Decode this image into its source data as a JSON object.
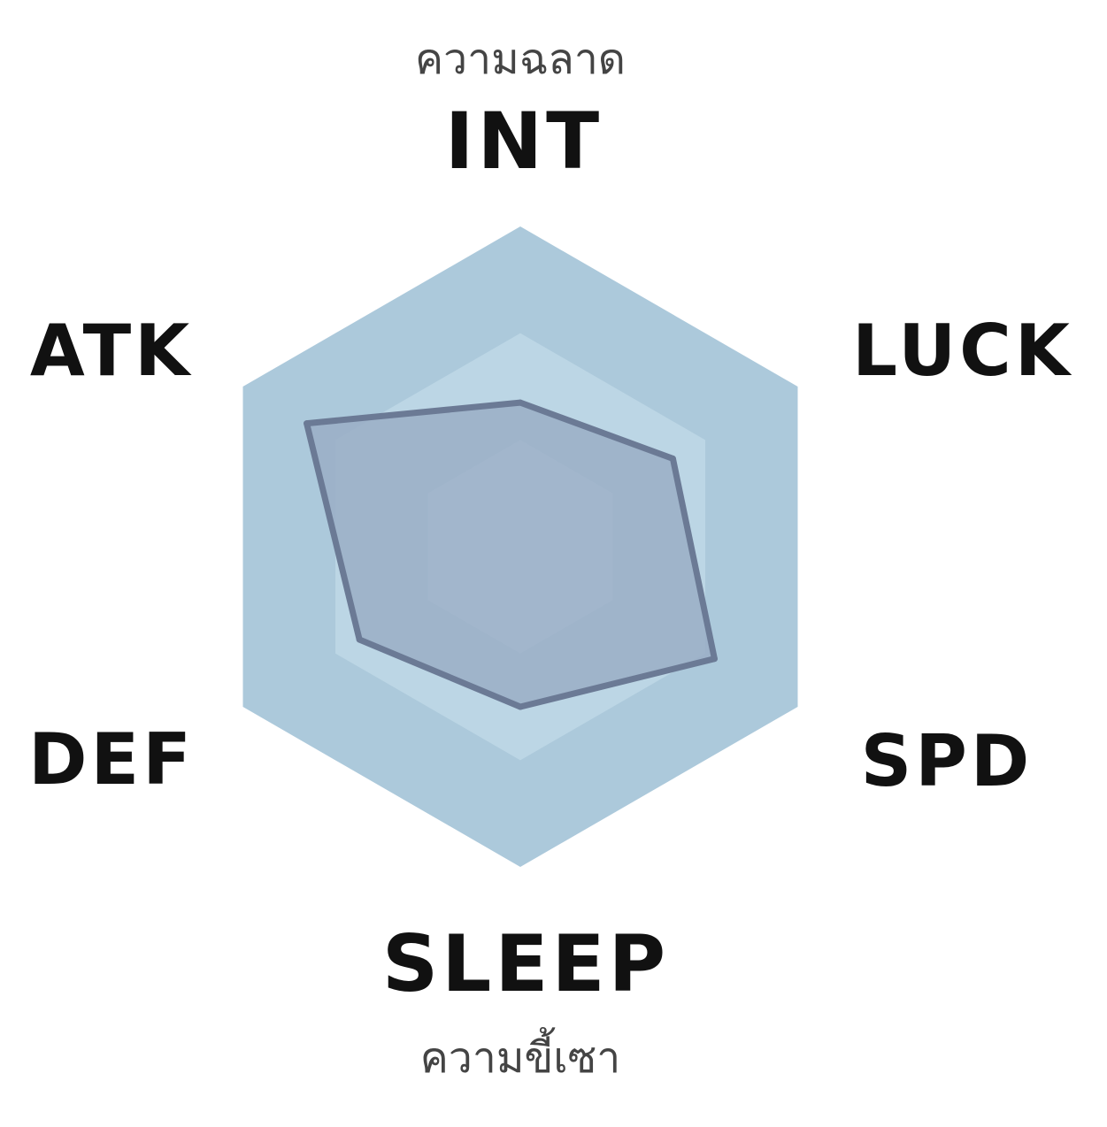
{
  "chart_data": {
    "type": "radar",
    "axes": [
      {
        "label": "INT",
        "sublabel": "ความฉลาด",
        "value": 0.45
      },
      {
        "label": "LUCK",
        "sublabel": "",
        "value": 0.55
      },
      {
        "label": "SPD",
        "sublabel": "",
        "value": 0.7
      },
      {
        "label": "SLEEP",
        "sublabel": "ความขี้เซา",
        "value": 0.5
      },
      {
        "label": "DEF",
        "sublabel": "",
        "value": 0.58
      },
      {
        "label": "ATK",
        "sublabel": "",
        "value": 0.77
      }
    ],
    "range": [
      0,
      1
    ],
    "levels": 3,
    "colors": {
      "outer_ring": "#acc9db",
      "middle_ring": "#bcd6e5",
      "inner_ring": "#cde2ee",
      "data_fill": "#9aaec6",
      "data_stroke": "#6b7a95",
      "label_text": "#111111",
      "sublabel_text": "#444444"
    }
  }
}
